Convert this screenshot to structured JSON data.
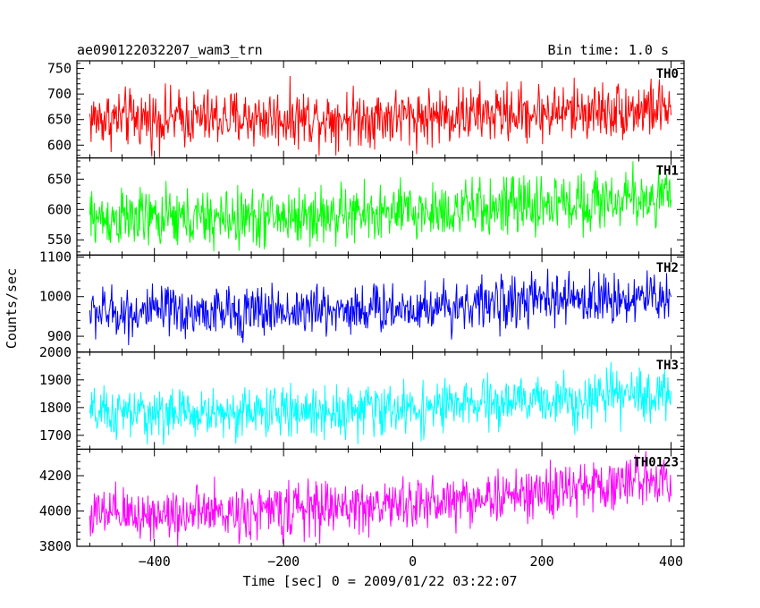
{
  "header": {
    "title": "ae090122032207_wam3_trn",
    "bin_time": "Bin time: 1.0 s"
  },
  "chart_data": {
    "type": "line",
    "xlabel": "Time [sec] 0 = 2009/01/22 03:22:07",
    "ylabel": "Counts/sec",
    "xlim": [
      -520,
      420
    ],
    "x_ticks": [
      -400,
      -200,
      0,
      200,
      400
    ],
    "x_range_data": [
      -500,
      400
    ],
    "bin_time_sec": 1.0,
    "grid": false,
    "panels": [
      {
        "name": "TH0",
        "color": "#ff0000",
        "ylim": [
          575,
          765
        ],
        "y_ticks": [
          600,
          650,
          700,
          750
        ],
        "trend": [
          {
            "x": -500,
            "y": 652
          },
          {
            "x": -300,
            "y": 652
          },
          {
            "x": 0,
            "y": 656
          },
          {
            "x": 200,
            "y": 664
          },
          {
            "x": 400,
            "y": 672
          }
        ],
        "noise_amplitude": 28
      },
      {
        "name": "TH1",
        "color": "#00ff00",
        "ylim": [
          525,
          685
        ],
        "y_ticks": [
          550,
          600,
          650
        ],
        "trend": [
          {
            "x": -500,
            "y": 585
          },
          {
            "x": -300,
            "y": 584
          },
          {
            "x": 0,
            "y": 595
          },
          {
            "x": 200,
            "y": 608
          },
          {
            "x": 400,
            "y": 622
          }
        ],
        "noise_amplitude": 24
      },
      {
        "name": "TH2",
        "color": "#0000ff",
        "ylim": [
          860,
          1105
        ],
        "y_ticks": [
          900,
          1000,
          1100
        ],
        "trend": [
          {
            "x": -500,
            "y": 960
          },
          {
            "x": -300,
            "y": 960
          },
          {
            "x": 0,
            "y": 972
          },
          {
            "x": 200,
            "y": 990
          },
          {
            "x": 400,
            "y": 1000
          }
        ],
        "noise_amplitude": 32
      },
      {
        "name": "TH3",
        "color": "#00ffff",
        "ylim": [
          1650,
          2000
        ],
        "y_ticks": [
          1700,
          1800,
          1900,
          2000
        ],
        "trend": [
          {
            "x": -500,
            "y": 1775
          },
          {
            "x": -300,
            "y": 1780
          },
          {
            "x": 0,
            "y": 1795
          },
          {
            "x": 200,
            "y": 1825
          },
          {
            "x": 400,
            "y": 1850
          }
        ],
        "noise_amplitude": 45
      },
      {
        "name": "TH0123",
        "color": "#ff00ff",
        "ylim": [
          3800,
          4350
        ],
        "y_ticks": [
          3800,
          4000,
          4200
        ],
        "trend": [
          {
            "x": -500,
            "y": 3975
          },
          {
            "x": -300,
            "y": 3990
          },
          {
            "x": 0,
            "y": 4040
          },
          {
            "x": 200,
            "y": 4100
          },
          {
            "x": 400,
            "y": 4200
          }
        ],
        "noise_amplitude": 75
      }
    ]
  }
}
